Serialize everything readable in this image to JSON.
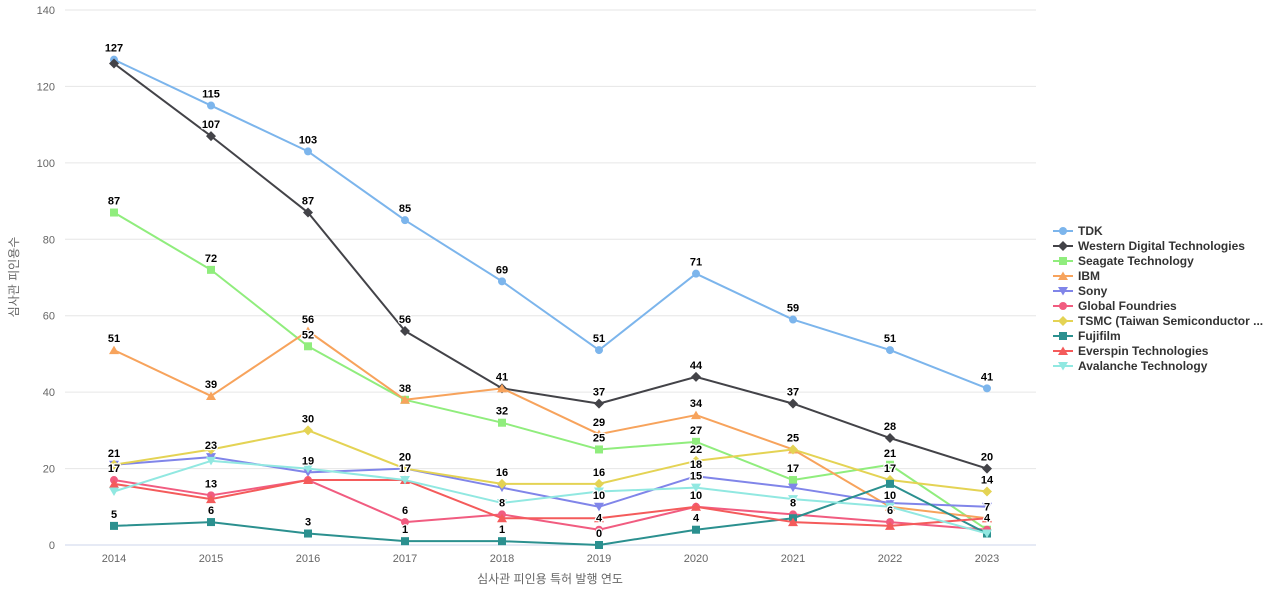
{
  "chart_data": {
    "type": "line",
    "title": "",
    "xlabel": "심사관 피인용 특허 발행 연도",
    "ylabel": "심사관 피인용수",
    "x_categories": [
      "2014",
      "2015",
      "2016",
      "2017",
      "2018",
      "2019",
      "2020",
      "2021",
      "2022",
      "2023"
    ],
    "ylim": [
      0,
      140
    ],
    "ytick_interval": 20,
    "yticks": [
      0,
      20,
      40,
      60,
      80,
      100,
      120,
      140
    ],
    "grid": "horizontal-only",
    "legend_position": "right",
    "series": [
      {
        "name": "TDK",
        "color": "#7cb5ec",
        "marker": "circle",
        "values": [
          127,
          115,
          103,
          85,
          69,
          51,
          71,
          59,
          51,
          41
        ],
        "labeled": [
          1,
          1,
          1,
          1,
          1,
          1,
          1,
          1,
          1,
          1
        ]
      },
      {
        "name": "Western Digital Technologies",
        "color": "#434348",
        "marker": "diamond",
        "values": [
          126,
          107,
          87,
          56,
          41,
          37,
          44,
          37,
          28,
          20
        ],
        "labeled": [
          0,
          1,
          1,
          1,
          0,
          1,
          1,
          1,
          1,
          1
        ]
      },
      {
        "name": "Seagate Technology",
        "color": "#90ed7d",
        "marker": "square",
        "values": [
          87,
          72,
          52,
          38,
          32,
          25,
          27,
          17,
          21,
          4
        ],
        "labeled": [
          1,
          1,
          1,
          0,
          1,
          1,
          1,
          1,
          1,
          0
        ]
      },
      {
        "name": "IBM",
        "color": "#f7a35c",
        "marker": "triangle",
        "values": [
          51,
          39,
          56,
          38,
          41,
          29,
          34,
          25,
          10,
          7
        ],
        "labeled": [
          1,
          1,
          1,
          1,
          1,
          1,
          1,
          0,
          1,
          0
        ]
      },
      {
        "name": "Sony",
        "color": "#8085e9",
        "marker": "triangle-down",
        "values": [
          21,
          23,
          19,
          20,
          15,
          10,
          18,
          15,
          11,
          10
        ],
        "labeled": [
          0,
          1,
          1,
          0,
          0,
          1,
          1,
          0,
          0,
          0
        ]
      },
      {
        "name": "Global Foundries",
        "color": "#f15c80",
        "marker": "circle",
        "values": [
          17,
          13,
          17,
          6,
          8,
          4,
          10,
          8,
          6,
          4
        ],
        "labeled": [
          1,
          1,
          0,
          1,
          1,
          1,
          0,
          1,
          1,
          1
        ]
      },
      {
        "name": "TSMC (Taiwan Semiconductor ...",
        "color": "#e4d354",
        "marker": "diamond",
        "values": [
          21,
          25,
          30,
          20,
          16,
          16,
          22,
          25,
          17,
          14
        ],
        "labeled": [
          1,
          0,
          1,
          1,
          1,
          1,
          1,
          1,
          1,
          1
        ]
      },
      {
        "name": "Fujifilm",
        "color": "#2b908f",
        "marker": "square",
        "values": [
          5,
          6,
          3,
          1,
          1,
          0,
          4,
          7,
          16,
          3
        ],
        "labeled": [
          1,
          1,
          1,
          1,
          1,
          1,
          1,
          0,
          0,
          0
        ]
      },
      {
        "name": "Everspin Technologies",
        "color": "#f45b5b",
        "marker": "triangle",
        "values": [
          16,
          12,
          17,
          17,
          7,
          7,
          10,
          6,
          5,
          7
        ],
        "labeled": [
          0,
          0,
          0,
          1,
          0,
          0,
          1,
          0,
          0,
          1
        ]
      },
      {
        "name": "Avalanche Technology",
        "color": "#91e8e1",
        "marker": "triangle-down",
        "values": [
          14,
          22,
          20,
          17,
          11,
          14,
          15,
          12,
          10,
          3
        ],
        "labeled": [
          0,
          0,
          0,
          0,
          0,
          0,
          1,
          0,
          0,
          0
        ]
      }
    ]
  },
  "style": {
    "background": "#ffffff",
    "grid_color": "#e6e6e6",
    "x_axis_line_color": "#ccd6eb",
    "tick_label_color": "#666666",
    "axis_title_color": "#666666",
    "legend_text_color": "#333333",
    "data_label_color": "#000000"
  }
}
